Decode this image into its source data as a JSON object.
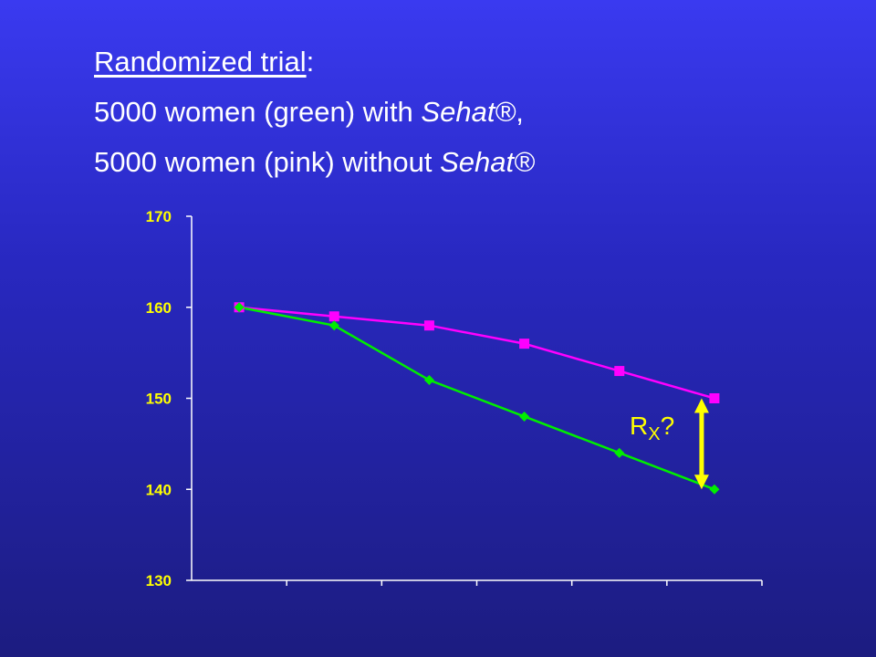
{
  "heading": {
    "line1_underlined": "Randomized trial",
    "line1_suffix": ":",
    "line2_prefix": "5000 women (green) with ",
    "line2_italic": "Sehat®",
    "line2_suffix": ",",
    "line3_prefix": "5000 women (pink) without ",
    "line3_italic": "Sehat®"
  },
  "annotation": {
    "main": "R",
    "sub": "X",
    "suffix": "?",
    "color": "#ffff00"
  },
  "chart_data": {
    "type": "line",
    "title": "",
    "xlabel": "",
    "ylabel": "",
    "ylim": [
      130,
      170
    ],
    "yticks": [
      170,
      160,
      150,
      140,
      130
    ],
    "x_categories": 6,
    "grid": false,
    "series": [
      {
        "color": "#ff00ff",
        "marker": "square",
        "values": [
          160,
          159,
          158,
          156,
          153,
          150
        ]
      },
      {
        "color": "#00ee00",
        "marker": "diamond",
        "values": [
          160,
          158,
          152,
          148,
          144,
          140
        ]
      }
    ],
    "axis_color": "#ffffff",
    "tick_label_color": "#ffff00"
  }
}
